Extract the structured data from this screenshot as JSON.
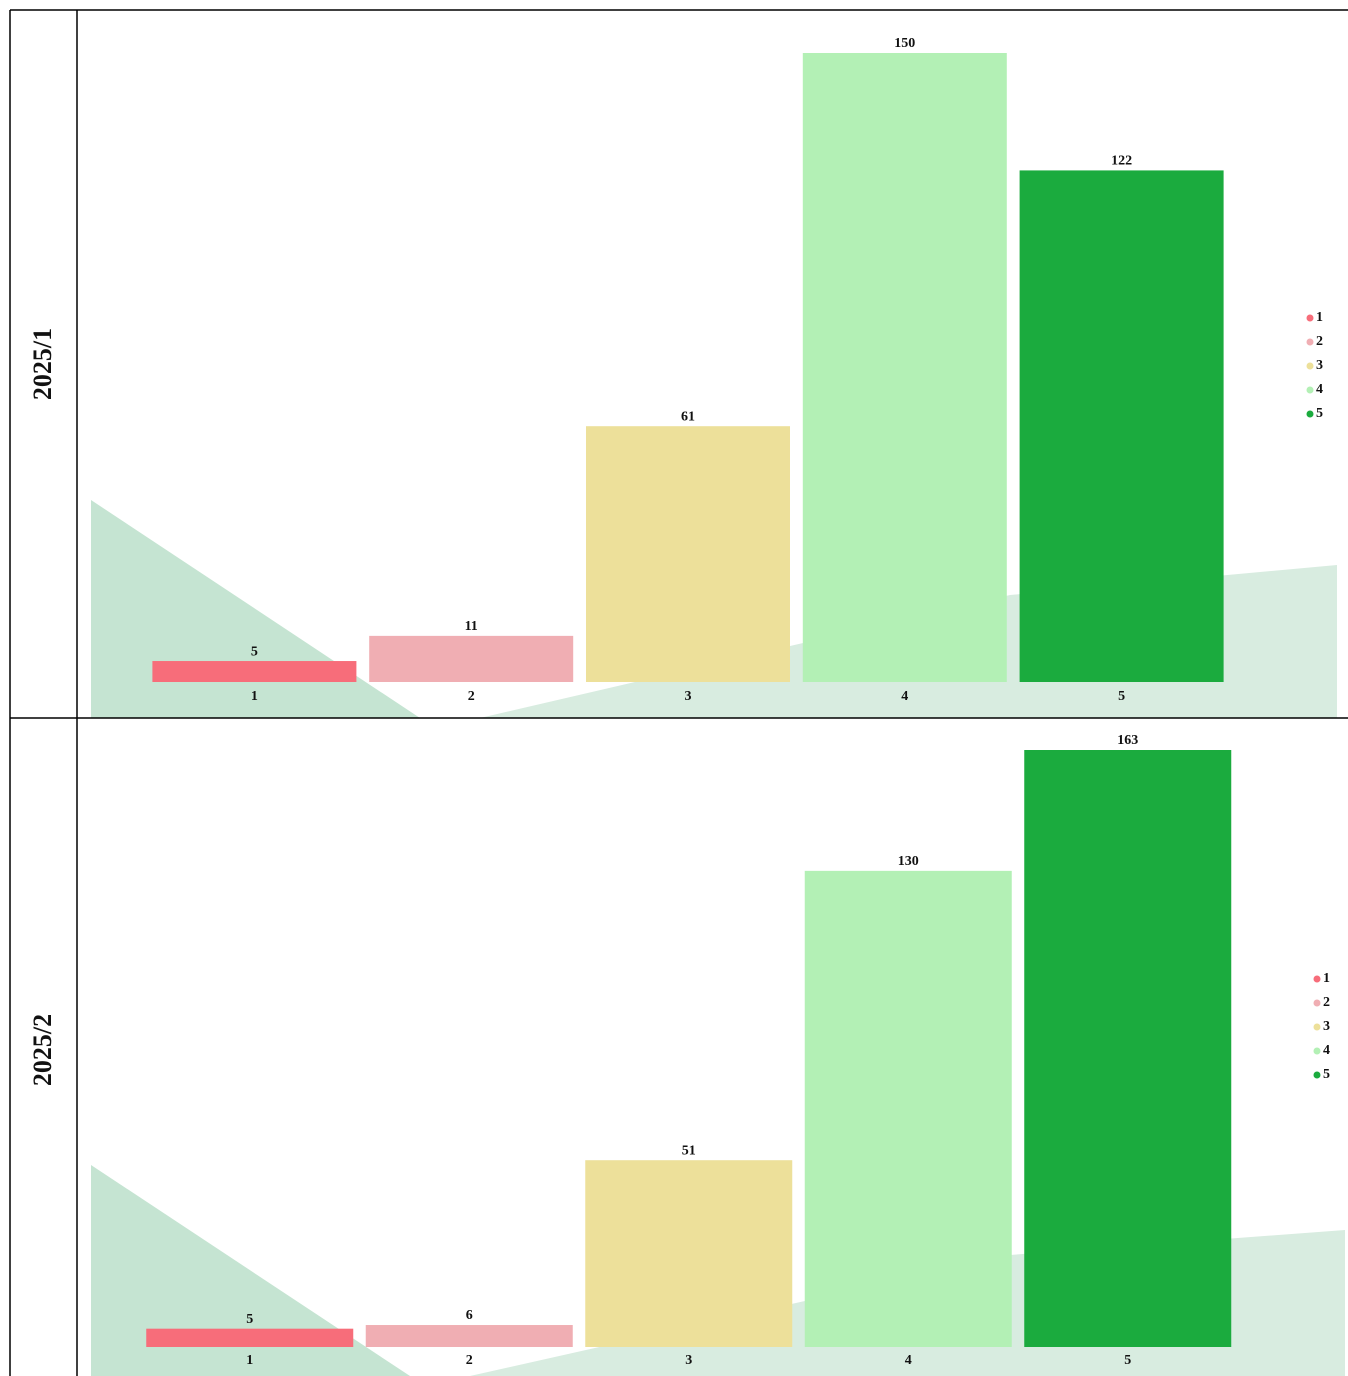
{
  "chart_data": [
    {
      "type": "bar",
      "title": "2025/1",
      "categories": [
        "1",
        "2",
        "3",
        "4",
        "5"
      ],
      "values": [
        5,
        11,
        61,
        150,
        122
      ],
      "colors": [
        "#f76d7a",
        "#f0aeb3",
        "#ede09a",
        "#b3f0b5",
        "#1bab3e"
      ]
    },
    {
      "type": "bar",
      "title": "2025/2",
      "categories": [
        "1",
        "2",
        "3",
        "4",
        "5"
      ],
      "values": [
        5,
        6,
        51,
        130,
        163
      ],
      "colors": [
        "#f76d7a",
        "#f0aeb3",
        "#ede09a",
        "#b3f0b5",
        "#1bab3e"
      ]
    }
  ]
}
